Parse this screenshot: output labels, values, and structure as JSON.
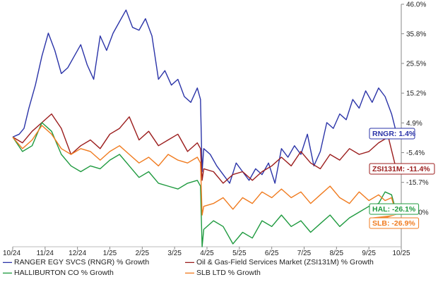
{
  "chart_data": {
    "type": "line",
    "title": "",
    "xlabel": "",
    "ylabel": "",
    "x_ticks": [
      "10/24",
      "11/24",
      "12/24",
      "1/25",
      "2/25",
      "3/25",
      "4/25",
      "5/25",
      "6/25",
      "7/25",
      "8/25",
      "9/25",
      "10/25"
    ],
    "y_ticks": [
      "46.0%",
      "35.8%",
      "25.5%",
      "15.2%",
      "4.9%",
      "-5.4%",
      "-15.7%",
      "-26.0%"
    ],
    "ylim": [
      -38,
      46
    ],
    "grid": false,
    "legend_placement": "bottom",
    "series": [
      {
        "name": "RANGER EGY SVCS (RNGR) % Growth",
        "color": "#2b34a8",
        "end_label": "RNGR: 1.4%",
        "x": [
          0,
          0.2,
          0.35,
          0.5,
          0.7,
          0.9,
          1.1,
          1.3,
          1.5,
          1.7,
          1.9,
          2.1,
          2.3,
          2.5,
          2.7,
          2.9,
          3.1,
          3.3,
          3.5,
          3.7,
          3.9,
          4.1,
          4.3,
          4.5,
          4.7,
          4.9,
          5.1,
          5.3,
          5.5,
          5.7,
          5.8,
          5.85,
          5.9,
          6.1,
          6.3,
          6.5,
          6.7,
          6.9,
          7.1,
          7.3,
          7.5,
          7.7,
          7.9,
          8.1,
          8.3,
          8.5,
          8.7,
          8.9,
          9.1,
          9.3,
          9.5,
          9.7,
          9.9,
          10.1,
          10.3,
          10.5,
          10.7,
          10.9,
          11.1,
          11.3,
          11.5,
          11.7,
          11.85
        ],
        "values": [
          0,
          1,
          3,
          10,
          18,
          28,
          36,
          30,
          22,
          24,
          28,
          32,
          25,
          20,
          35,
          30,
          36,
          40,
          44,
          38,
          37,
          41,
          35,
          20,
          23,
          18,
          20,
          14,
          12,
          17,
          13,
          -12,
          -4,
          -6,
          -10,
          -13,
          -16,
          -9,
          -12,
          -15,
          -11,
          -13,
          -9,
          -16,
          -4,
          -7,
          -3,
          -6,
          1,
          -10,
          -5,
          5,
          3,
          8,
          6,
          13,
          10,
          16,
          12,
          17,
          14,
          8,
          1.4
        ]
      },
      {
        "name": "Oil & Gas-Field Services Market (ZSI131M) % Growth",
        "color": "#9b1d1d",
        "end_label": "ZSI131M: -11.4%",
        "x": [
          0,
          0.3,
          0.6,
          0.9,
          1.2,
          1.5,
          1.8,
          2.1,
          2.4,
          2.7,
          3.0,
          3.3,
          3.6,
          3.9,
          4.2,
          4.5,
          4.8,
          5.1,
          5.4,
          5.7,
          5.8,
          5.85,
          5.9,
          6.2,
          6.5,
          6.8,
          7.1,
          7.4,
          7.7,
          8.0,
          8.3,
          8.6,
          8.9,
          9.2,
          9.5,
          9.8,
          10.1,
          10.4,
          10.7,
          11.0,
          11.3,
          11.6,
          11.85
        ],
        "values": [
          0,
          -2,
          2,
          5,
          8,
          3,
          -6,
          -3,
          -1,
          -4,
          1,
          3,
          7,
          -1,
          2,
          -3,
          -1,
          1,
          -5,
          -2,
          -4,
          -15,
          -11,
          -12,
          -16,
          -13,
          -12,
          -15,
          -12,
          -10,
          -7,
          -10,
          -5,
          -9,
          -11,
          -6,
          -8,
          -4,
          -6,
          -5,
          -2,
          0,
          -11.4
        ]
      },
      {
        "name": "HALLIBURTON CO % Growth",
        "color": "#1f9a3f",
        "end_label": "HAL: -26.1%",
        "x": [
          0,
          0.3,
          0.6,
          0.9,
          1.2,
          1.5,
          1.8,
          2.1,
          2.4,
          2.7,
          3.0,
          3.3,
          3.6,
          3.9,
          4.2,
          4.5,
          4.8,
          5.1,
          5.4,
          5.7,
          5.8,
          5.85,
          5.9,
          6.2,
          6.5,
          6.8,
          7.1,
          7.4,
          7.7,
          8.0,
          8.3,
          8.6,
          8.9,
          9.2,
          9.5,
          9.8,
          10.1,
          10.4,
          10.7,
          11.0,
          11.3,
          11.5,
          11.7,
          11.85
        ],
        "values": [
          0,
          -5,
          -3,
          5,
          2,
          -6,
          -10,
          -12,
          -10,
          -11,
          -8,
          -6,
          -10,
          -14,
          -12,
          -16,
          -17,
          -18,
          -16,
          -15,
          -17,
          -38,
          -32,
          -29,
          -31,
          -37,
          -33,
          -35,
          -29,
          -31,
          -27,
          -31,
          -29,
          -33,
          -30,
          -27,
          -31,
          -28,
          -26,
          -24,
          -23,
          -19,
          -20,
          -26.1
        ]
      },
      {
        "name": "SLB LTD % Growth",
        "color": "#f07b1f",
        "end_label": "SLB: -26.9%",
        "x": [
          0,
          0.3,
          0.6,
          0.9,
          1.2,
          1.5,
          1.8,
          2.1,
          2.4,
          2.7,
          3.0,
          3.3,
          3.6,
          3.9,
          4.2,
          4.5,
          4.8,
          5.1,
          5.4,
          5.7,
          5.8,
          5.85,
          5.9,
          6.2,
          6.5,
          6.8,
          7.1,
          7.4,
          7.7,
          8.0,
          8.3,
          8.6,
          8.9,
          9.2,
          9.5,
          9.8,
          10.1,
          10.4,
          10.7,
          11.0,
          11.3,
          11.5,
          11.7,
          11.85
        ],
        "values": [
          0,
          -4,
          -1,
          4,
          1,
          -4,
          -6,
          -4,
          -5,
          -8,
          -5,
          -3,
          -6,
          -9,
          -7,
          -10,
          -6,
          -8,
          -9,
          -7,
          -9,
          -27,
          -24,
          -23,
          -21,
          -25,
          -21,
          -23,
          -19,
          -21,
          -18,
          -21,
          -19,
          -23,
          -20,
          -17,
          -21,
          -23,
          -19,
          -22,
          -20,
          -22,
          -21,
          -26.9
        ]
      }
    ]
  }
}
